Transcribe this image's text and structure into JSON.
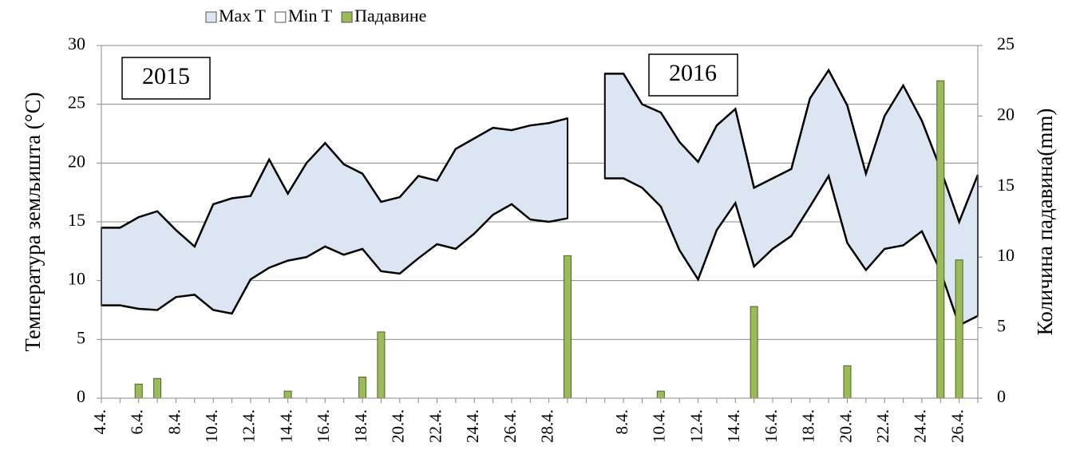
{
  "chart_data": {
    "type": "area",
    "legend": "top",
    "grid": true,
    "ylabel": "Температура земљишта (°C)",
    "y2label": "Количина падавина(mm)",
    "annotations": [
      "2015",
      "2016"
    ],
    "categories": [
      "4.4.",
      null,
      "6.4.",
      null,
      "8.4.",
      null,
      "10.4.",
      null,
      "12.4.",
      null,
      "14.4.",
      null,
      "16.4.",
      null,
      "18.4.",
      null,
      "20.4.",
      null,
      "22.4.",
      null,
      "24.4.",
      null,
      "26.4.",
      null,
      "28.4.",
      null,
      null,
      null,
      "8.4.",
      null,
      "10.4.",
      null,
      "12.4.",
      null,
      "14.4.",
      null,
      "16.4.",
      null,
      "18.4.",
      null,
      "20.4.",
      null,
      "22.4.",
      null,
      "24.4.",
      null,
      "26.4.",
      null
    ],
    "ylim": [
      0,
      30
    ],
    "yticks": [
      0,
      5,
      10,
      15,
      20,
      25,
      30
    ],
    "y2lim": [
      0,
      25
    ],
    "y2ticks": [
      0,
      5,
      10,
      15,
      20,
      25
    ],
    "series": [
      {
        "name": "Max T",
        "color": "#dce6f2",
        "values": [
          14.5,
          14.5,
          15.4,
          15.9,
          14.3,
          12.9,
          16.5,
          17.0,
          17.2,
          20.3,
          17.4,
          20.0,
          21.7,
          19.9,
          19.1,
          16.7,
          17.1,
          18.9,
          18.5,
          21.2,
          22.1,
          23.0,
          22.8,
          23.2,
          23.4,
          23.8,
          null,
          27.6,
          27.6,
          25.0,
          24.3,
          21.8,
          20.1,
          23.2,
          24.6,
          17.9,
          18.7,
          19.5,
          25.5,
          27.9,
          24.9,
          19.1,
          24.0,
          26.6,
          23.6,
          19.5,
          15.0,
          19.0
        ]
      },
      {
        "name": "Min T",
        "color": "#ffffff",
        "values": [
          7.9,
          7.9,
          7.6,
          7.5,
          8.6,
          8.8,
          7.5,
          7.2,
          10.1,
          11.1,
          11.7,
          12.0,
          12.9,
          12.2,
          12.7,
          10.8,
          10.6,
          11.9,
          13.1,
          12.7,
          14.0,
          15.6,
          16.5,
          15.2,
          15.0,
          15.3,
          null,
          18.7,
          18.7,
          17.9,
          16.3,
          12.6,
          10.1,
          14.3,
          16.6,
          11.2,
          12.7,
          13.8,
          16.3,
          18.9,
          13.2,
          10.9,
          12.7,
          13.0,
          14.2,
          10.8,
          6.2,
          7.0
        ]
      },
      {
        "name": "Падавине",
        "color": "#9bbb59",
        "type": "bar",
        "axis": "y2",
        "values": [
          0,
          0,
          1.0,
          1.4,
          0,
          0,
          0,
          0,
          0,
          0,
          0.5,
          0,
          0,
          0,
          1.5,
          4.7,
          0,
          0,
          0,
          0,
          0,
          0,
          0,
          0,
          0,
          10.1,
          null,
          0,
          0,
          0,
          0.5,
          0,
          0,
          0,
          0,
          6.5,
          0,
          0,
          0,
          0,
          2.3,
          0,
          0,
          0,
          0,
          22.5,
          9.8,
          0
        ]
      }
    ]
  }
}
